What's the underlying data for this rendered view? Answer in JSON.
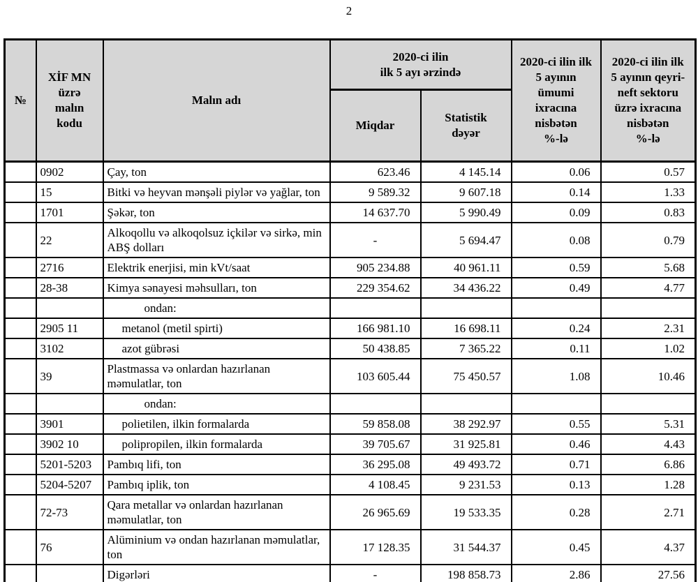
{
  "page": {
    "number": "2",
    "background_color": "#ffffff",
    "header_bg_color": "#d6d6d6",
    "border_color": "#000000"
  },
  "table": {
    "header": {
      "col_no": "№",
      "col_code": "XİF MN\nüzrə\nmalın\nkodu",
      "col_name": "Malın adı",
      "group_period": "2020-ci ilin\nilk 5 ayı ərzində",
      "col_quantity": "Miqdar",
      "col_value": "Statistik\ndəyər",
      "col_share_total": "2020-ci ilin ilk\n5 ayının\nümumi\nixracına\nnisbətən\n%-lə",
      "col_share_nonoil": "2020-ci ilin ilk\n5 ayının qeyri-\nneft sektoru\nüzrə ixracına\nnisbətən\n%-lə"
    },
    "rows": [
      {
        "no": "",
        "code": "0902",
        "name": "Çay, ton",
        "indent": "none",
        "quantity": "623.46",
        "value": "4 145.14",
        "share_total": "0.06",
        "share_nonoil": "0.57"
      },
      {
        "no": "",
        "code": "15",
        "name": "Bitki və heyvan mənşəli piylər və yağlar, ton",
        "indent": "none",
        "quantity": "9 589.32",
        "value": "9 607.18",
        "share_total": "0.14",
        "share_nonoil": "1.33"
      },
      {
        "no": "",
        "code": "1701",
        "name": "Şəkər, ton",
        "indent": "none",
        "quantity": "14 637.70",
        "value": "5 990.49",
        "share_total": "0.09",
        "share_nonoil": "0.83"
      },
      {
        "no": "",
        "code": "22",
        "name": "Alkoqollu və alkoqolsuz içkilər və sirkə, min ABŞ dolları",
        "indent": "none",
        "quantity": "-",
        "value": "5 694.47",
        "share_total": "0.08",
        "share_nonoil": "0.79"
      },
      {
        "no": "",
        "code": "2716",
        "name": "Elektrik enerjisi, min kVt/saat",
        "indent": "none",
        "quantity": "905 234.88",
        "value": "40 961.11",
        "share_total": "0.59",
        "share_nonoil": "5.68"
      },
      {
        "no": "",
        "code": "28-38",
        "name": "Kimya sənayesi məhsulları, ton",
        "indent": "none",
        "quantity": "229 354.62",
        "value": "34 436.22",
        "share_total": "0.49",
        "share_nonoil": "4.77"
      },
      {
        "no": "",
        "code": "",
        "name": "ondan:",
        "indent": "label",
        "quantity": "",
        "value": "",
        "share_total": "",
        "share_nonoil": ""
      },
      {
        "no": "",
        "code": "2905 11",
        "name": "metanol (metil spirti)",
        "indent": "sub",
        "quantity": "166 981.10",
        "value": "16 698.11",
        "share_total": "0.24",
        "share_nonoil": "2.31"
      },
      {
        "no": "",
        "code": "3102",
        "name": "azot gübrəsi",
        "indent": "sub",
        "quantity": "50 438.85",
        "value": "7 365.22",
        "share_total": "0.11",
        "share_nonoil": "1.02"
      },
      {
        "no": "",
        "code": "39",
        "name": "Plastmassa və onlardan hazırlanan məmulatlar, ton",
        "indent": "none",
        "quantity": "103 605.44",
        "value": "75 450.57",
        "share_total": "1.08",
        "share_nonoil": "10.46"
      },
      {
        "no": "",
        "code": "",
        "name": "ondan:",
        "indent": "label",
        "quantity": "",
        "value": "",
        "share_total": "",
        "share_nonoil": ""
      },
      {
        "no": "",
        "code": "3901",
        "name": "polietilen, ilkin formalarda",
        "indent": "sub",
        "quantity": "59 858.08",
        "value": "38 292.97",
        "share_total": "0.55",
        "share_nonoil": "5.31"
      },
      {
        "no": "",
        "code": "3902 10",
        "name": "polipropilen, ilkin formalarda",
        "indent": "sub",
        "quantity": "39 705.67",
        "value": "31 925.81",
        "share_total": "0.46",
        "share_nonoil": "4.43"
      },
      {
        "no": "",
        "code": "5201-5203",
        "name": "Pambıq lifi, ton",
        "indent": "none",
        "quantity": "36 295.08",
        "value": "49 493.72",
        "share_total": "0.71",
        "share_nonoil": "6.86"
      },
      {
        "no": "",
        "code": "5204-5207",
        "name": "Pambıq iplik, ton",
        "indent": "none",
        "quantity": "4 108.45",
        "value": "9 231.53",
        "share_total": "0.13",
        "share_nonoil": "1.28"
      },
      {
        "no": "",
        "code": "72-73",
        "name": "Qara metallar və onlardan hazırlanan məmulatlar, ton",
        "indent": "none",
        "quantity": "26 965.69",
        "value": "19 533.35",
        "share_total": "0.28",
        "share_nonoil": "2.71"
      },
      {
        "no": "",
        "code": "76",
        "name": "Alüminium və ondan hazırlanan məmulatlar, ton",
        "indent": "none",
        "quantity": "17 128.35",
        "value": "31 544.37",
        "share_total": "0.45",
        "share_nonoil": "4.37"
      },
      {
        "no": "",
        "code": "",
        "name": "Digərləri",
        "indent": "none",
        "quantity": "-",
        "value": "198 858.73",
        "share_total": "2.86",
        "share_nonoil": "27.56"
      }
    ]
  }
}
